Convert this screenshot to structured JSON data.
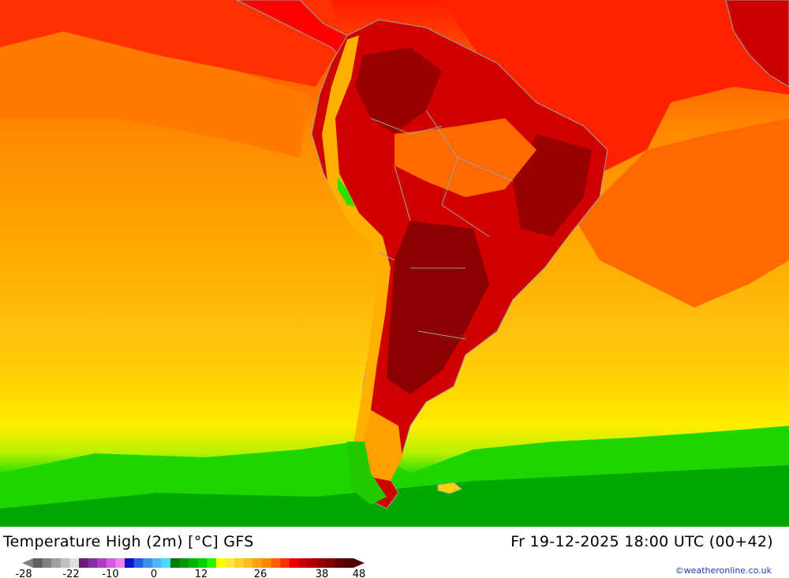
{
  "map": {
    "title": "Temperature High (2m) [°C] GFS",
    "valid_time": "Fr 19-12-2025 18:00 UTC (00+42)",
    "credit": "©weatheronline.co.uk",
    "region": "South America",
    "colors": {
      "hot_extreme": "#8b0000",
      "hot_land": "#c40000",
      "warm_ocean_north": "#ff1a00",
      "warm_ocean": "#ff7f00",
      "mid_ocean": "#ffa600",
      "mild_ocean": "#ffc800",
      "cool_ocean": "#ffee00",
      "cold_ocean": "#22dd00",
      "cold_far": "#00a800",
      "border": "#a0a0a0"
    }
  },
  "legend": {
    "colors": [
      "#606060",
      "#808080",
      "#a0a0a0",
      "#c0c0c0",
      "#e0e0e0",
      "#6a1e7a",
      "#8b2ca0",
      "#b03cc8",
      "#d55ae0",
      "#f080f0",
      "#1010c8",
      "#2060e0",
      "#3c8ff0",
      "#50b4ff",
      "#4ad8ff",
      "#007a00",
      "#009600",
      "#00b400",
      "#00d000",
      "#30f000",
      "#ffff00",
      "#ffe840",
      "#ffd030",
      "#ffbb20",
      "#ffa010",
      "#ff8800",
      "#ff6000",
      "#ff3000",
      "#e60000",
      "#c80000",
      "#b00000",
      "#980000",
      "#800000",
      "#640000",
      "#500000"
    ],
    "tick_labels": [
      "-28",
      "-22",
      "-10",
      "0",
      "12",
      "26",
      "38",
      "48"
    ]
  }
}
